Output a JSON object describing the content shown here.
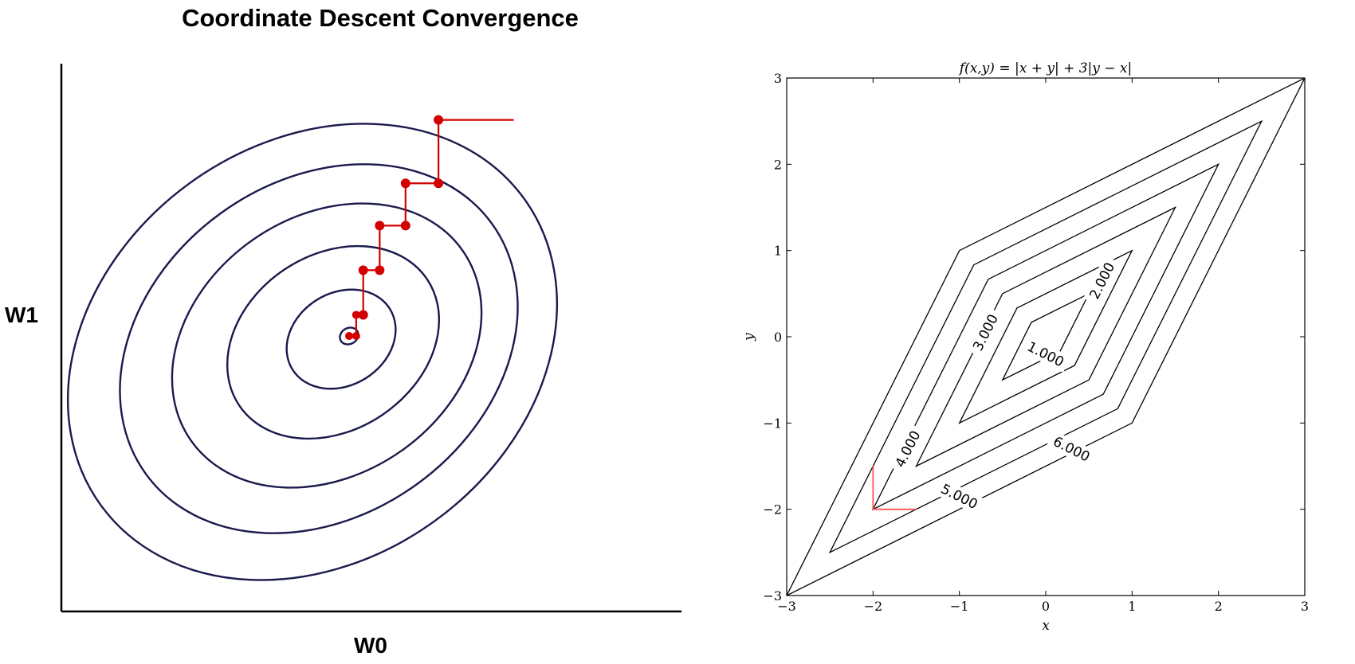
{
  "chart_data": [
    {
      "type": "line",
      "title": "Coordinate Descent Convergence",
      "xlabel": "W0",
      "ylabel": "W1",
      "contours": {
        "count": 6,
        "center": [
          0,
          0
        ],
        "line_color": "#1a1a4e"
      },
      "path": {
        "color": "#d40000",
        "points": [
          [
            3.5,
            4.6
          ],
          [
            1.9,
            4.6
          ],
          [
            1.9,
            3.25
          ],
          [
            1.2,
            3.25
          ],
          [
            1.2,
            2.35
          ],
          [
            0.65,
            2.35
          ],
          [
            0.65,
            1.4
          ],
          [
            0.3,
            1.4
          ],
          [
            0.3,
            0.45
          ],
          [
            0.15,
            0.45
          ],
          [
            0.15,
            0.0
          ],
          [
            0.0,
            0.0
          ]
        ]
      }
    },
    {
      "type": "line",
      "title": "f(x,y) = |x + y| + 3|y − x|",
      "xlabel": "x",
      "ylabel": "y",
      "xlim": [
        -3,
        3
      ],
      "ylim": [
        -3,
        3
      ],
      "xticks": [
        "−3",
        "−2",
        "−1",
        "0",
        "1",
        "2",
        "3"
      ],
      "yticks": [
        "−3",
        "−2",
        "−1",
        "0",
        "1",
        "2",
        "3"
      ],
      "grid": false,
      "contour_levels": [
        1,
        2,
        3,
        4,
        5,
        6
      ],
      "contour_labels": [
        "1.000",
        "2.000",
        "3.000",
        "4.000",
        "5.000",
        "6.000"
      ],
      "line_color": "#000000",
      "path": {
        "color": "#ff5555",
        "points": [
          [
            -2,
            -1.5
          ],
          [
            -2,
            -2
          ],
          [
            -1.5,
            -2
          ]
        ]
      }
    }
  ]
}
